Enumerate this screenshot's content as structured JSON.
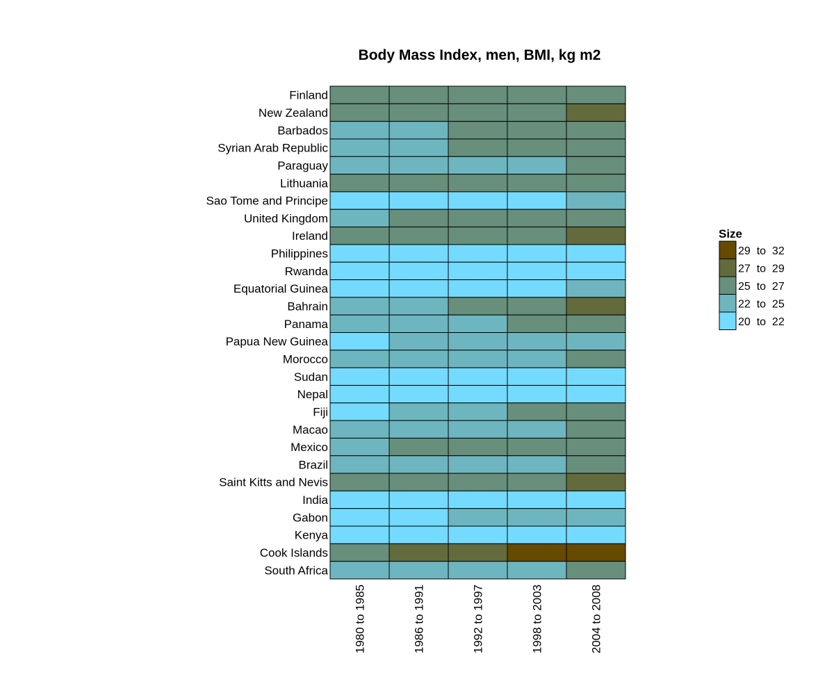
{
  "chart_data": {
    "type": "heatmap",
    "title": "Body Mass Index, men, BMI, kg m2",
    "xlabel": "",
    "ylabel": "",
    "columns": [
      "1980 to 1985",
      "1986 to 1991",
      "1992 to 1997",
      "1998 to 2003",
      "2004 to 2008"
    ],
    "rows": [
      "Finland",
      "New Zealand",
      "Barbados",
      "Syrian Arab Republic",
      "Paraguay",
      "Lithuania",
      "Sao Tome and Principe",
      "United Kingdom",
      "Ireland",
      "Philippines",
      "Rwanda",
      "Equatorial Guinea",
      "Bahrain",
      "Panama",
      "Papua New Guinea",
      "Morocco",
      "Sudan",
      "Nepal",
      "Fiji",
      "Macao",
      "Mexico",
      "Brazil",
      "Saint Kitts and Nevis",
      "India",
      "Gabon",
      "Kenya",
      "Cook Islands",
      "South Africa"
    ],
    "bins": [
      {
        "label": "29  to  32",
        "color": "#654A00"
      },
      {
        "label": "27  to  29",
        "color": "#636B3D"
      },
      {
        "label": "25  to  27",
        "color": "#678F7C"
      },
      {
        "label": "22  to  25",
        "color": "#6EB6BF"
      },
      {
        "label": "20  to  22",
        "color": "#74DBFF"
      }
    ],
    "cell_bins": [
      [
        2,
        2,
        2,
        2,
        2
      ],
      [
        2,
        2,
        2,
        2,
        1
      ],
      [
        3,
        3,
        2,
        2,
        2
      ],
      [
        3,
        3,
        2,
        2,
        2
      ],
      [
        3,
        3,
        3,
        3,
        2
      ],
      [
        2,
        2,
        2,
        2,
        2
      ],
      [
        4,
        4,
        4,
        4,
        3
      ],
      [
        3,
        2,
        2,
        2,
        2
      ],
      [
        2,
        2,
        2,
        2,
        1
      ],
      [
        4,
        4,
        4,
        4,
        4
      ],
      [
        4,
        4,
        4,
        4,
        4
      ],
      [
        4,
        4,
        4,
        4,
        3
      ],
      [
        3,
        3,
        2,
        2,
        1
      ],
      [
        3,
        3,
        3,
        2,
        2
      ],
      [
        4,
        3,
        3,
        3,
        3
      ],
      [
        3,
        3,
        3,
        3,
        2
      ],
      [
        4,
        4,
        4,
        4,
        4
      ],
      [
        4,
        4,
        4,
        4,
        4
      ],
      [
        4,
        3,
        3,
        2,
        2
      ],
      [
        3,
        3,
        3,
        3,
        2
      ],
      [
        3,
        2,
        2,
        2,
        2
      ],
      [
        3,
        3,
        3,
        3,
        2
      ],
      [
        2,
        2,
        2,
        2,
        1
      ],
      [
        4,
        4,
        4,
        4,
        4
      ],
      [
        4,
        4,
        3,
        3,
        3
      ],
      [
        4,
        4,
        4,
        4,
        4
      ],
      [
        2,
        1,
        1,
        0,
        0
      ],
      [
        3,
        3,
        3,
        3,
        2
      ]
    ],
    "legend": {
      "title": "Size",
      "position": "right"
    },
    "grid": false
  }
}
